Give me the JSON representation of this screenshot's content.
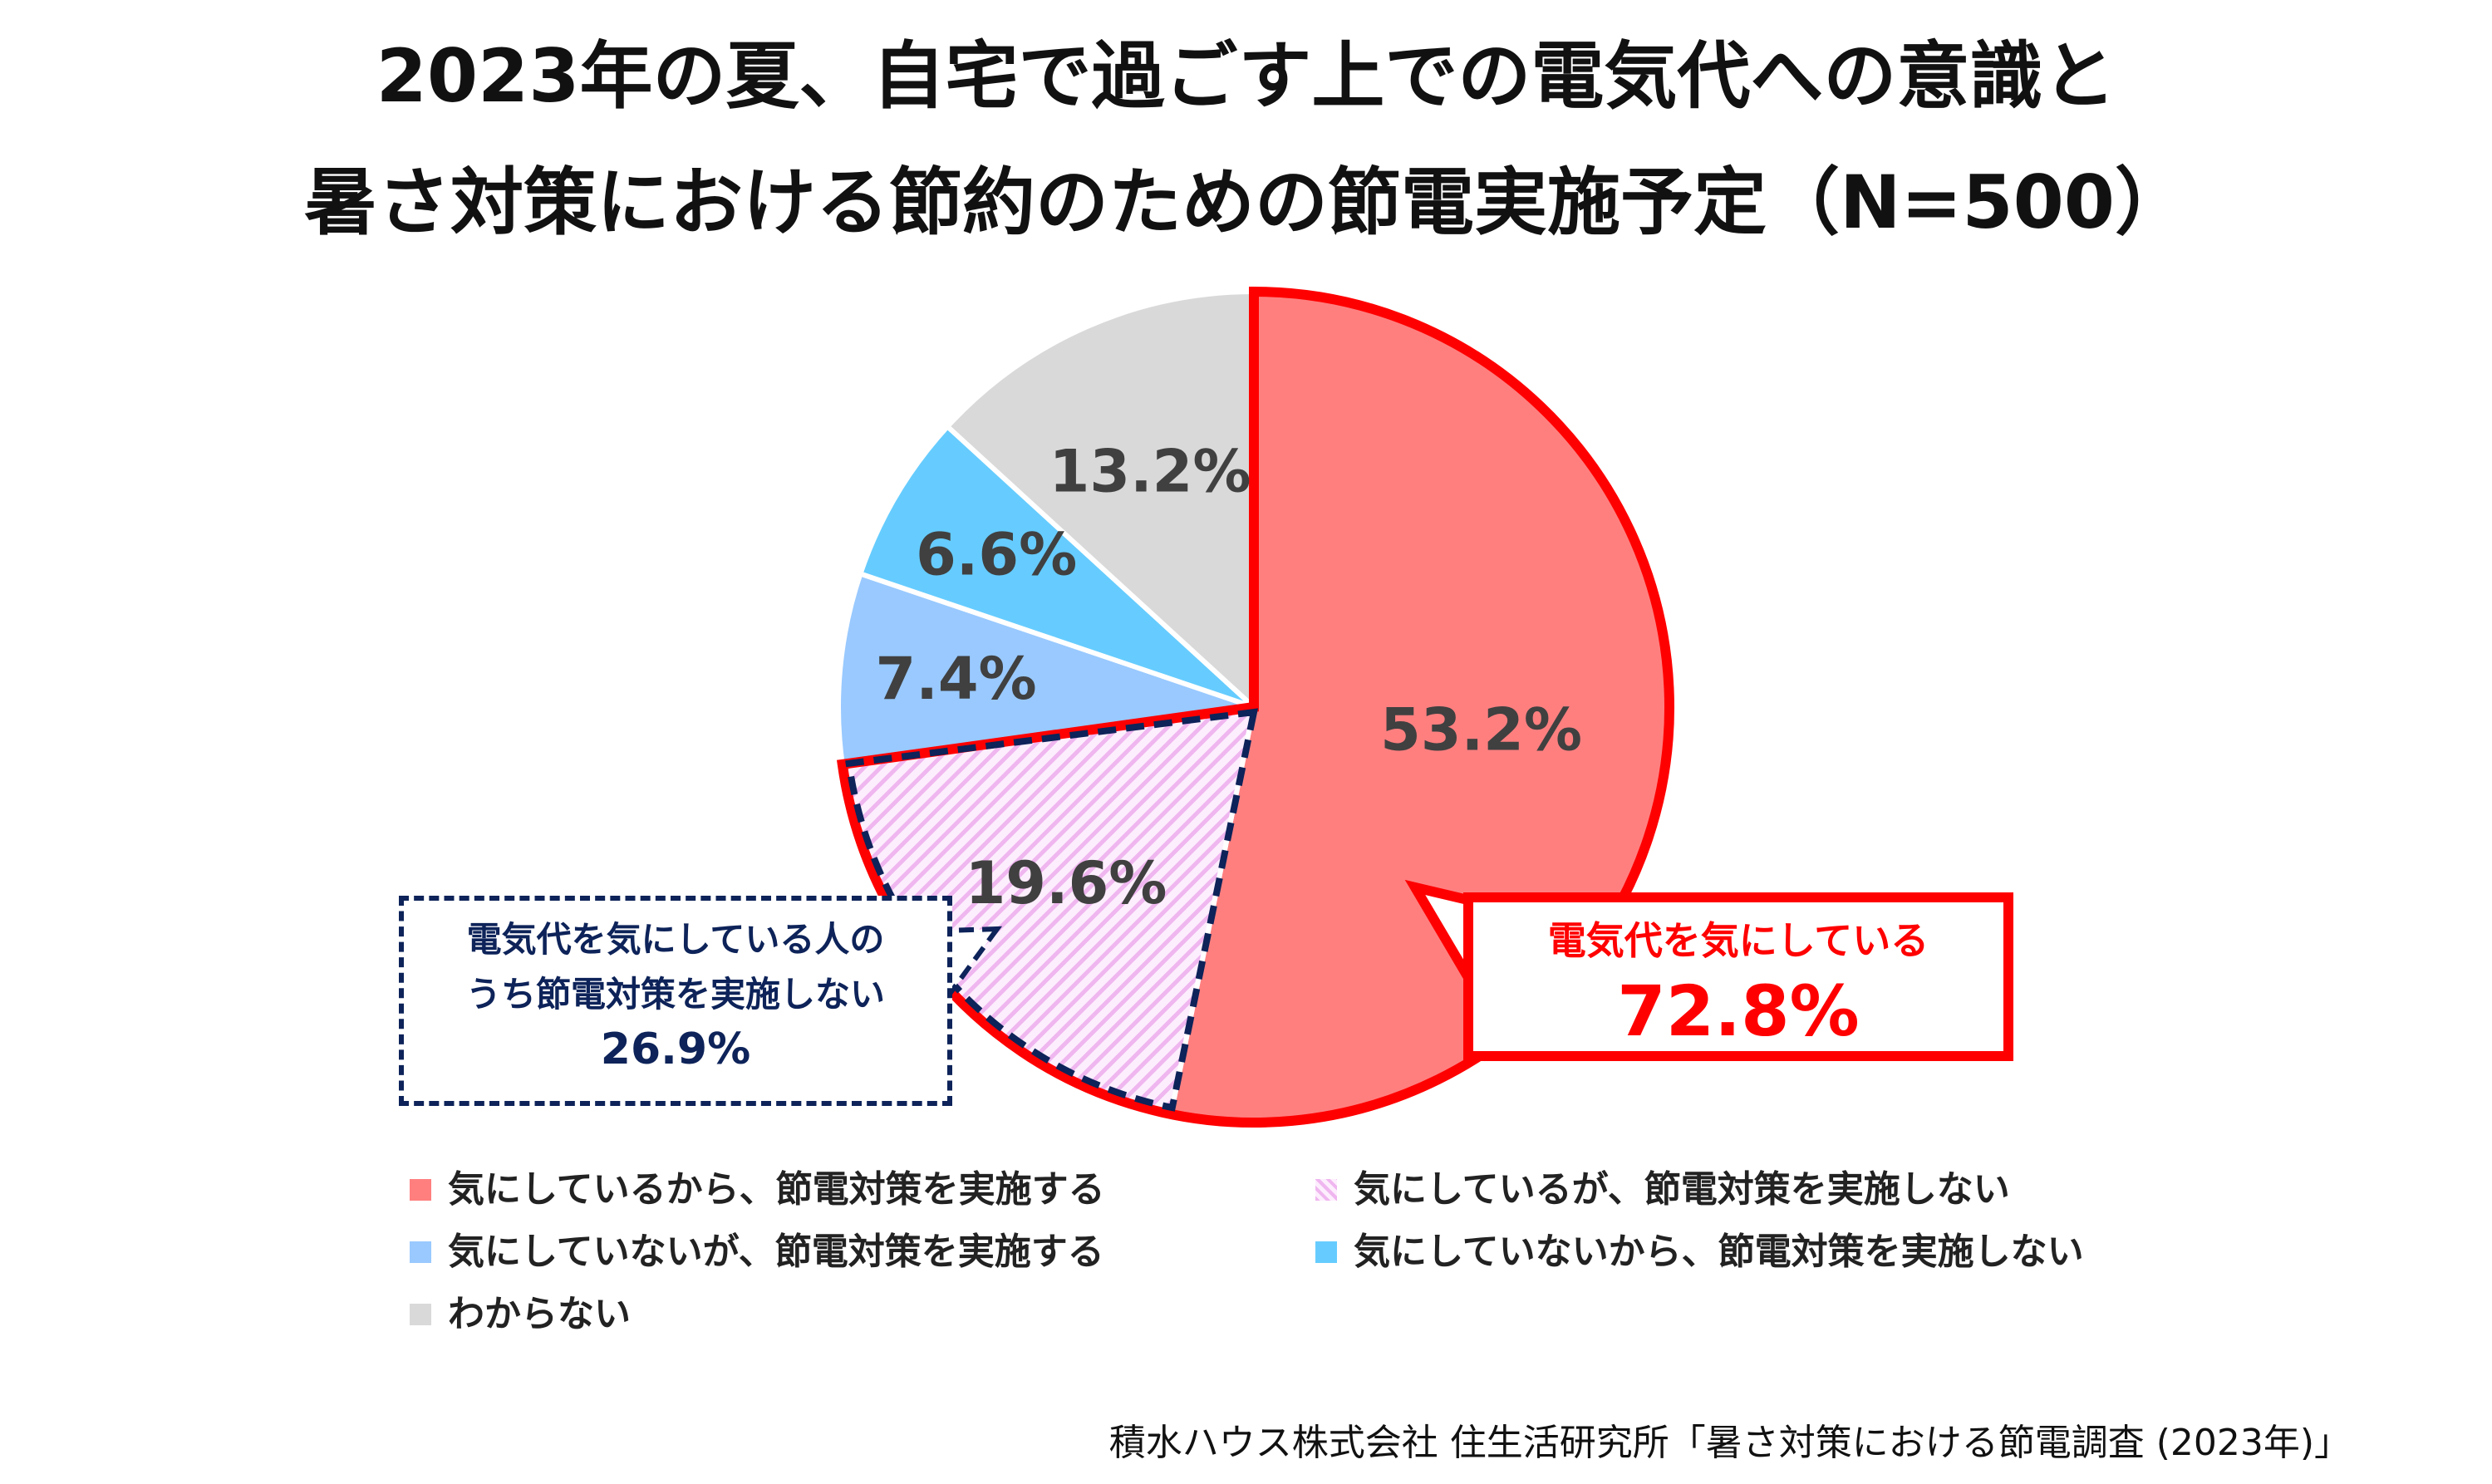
{
  "title": {
    "line1": "2023年の夏、自宅で過ごす上での電気代への意識と",
    "line2": "暑さ対策における節約のための節電実施予定（N=500）"
  },
  "chart_data": {
    "type": "pie",
    "title": "2023年の夏、自宅で過ごす上での電気代への意識と暑さ対策における節約のための節電実施予定（N=500）",
    "start": "12 o'clock, clockwise",
    "slices": [
      {
        "label": "気にしているから、節電対策を実施する",
        "value": 53.2,
        "value_label": "53.2%",
        "color": "#ff7f7f"
      },
      {
        "label": "気にしているが、節電対策を実施しない",
        "value": 19.6,
        "value_label": "19.6%",
        "color": "#f2c6f2",
        "pattern": "hatched"
      },
      {
        "label": "気にしていないが、節電対策を実施する",
        "value": 7.4,
        "value_label": "7.4%",
        "color": "#99c9ff"
      },
      {
        "label": "気にしていないから、節電対策を実施しない",
        "value": 6.6,
        "value_label": "6.6%",
        "color": "#66ccff"
      },
      {
        "label": "わからない",
        "value": 13.2,
        "value_label": "13.2%",
        "color": "#d9d9d9"
      }
    ],
    "legend_placement": "bottom",
    "annotations": [
      {
        "text_line1": "電気代を気にしている",
        "value": "72.8%",
        "color": "#ff0000"
      },
      {
        "text_line1": "電気代を気にしている人の",
        "text_line2": "うち節電対策を実施しない",
        "value": "26.9%",
        "color": "#0d2359"
      }
    ]
  },
  "source": "積水ハウス株式会社 住生活研究所「暑さ対策における節電調査 (2023年)」"
}
